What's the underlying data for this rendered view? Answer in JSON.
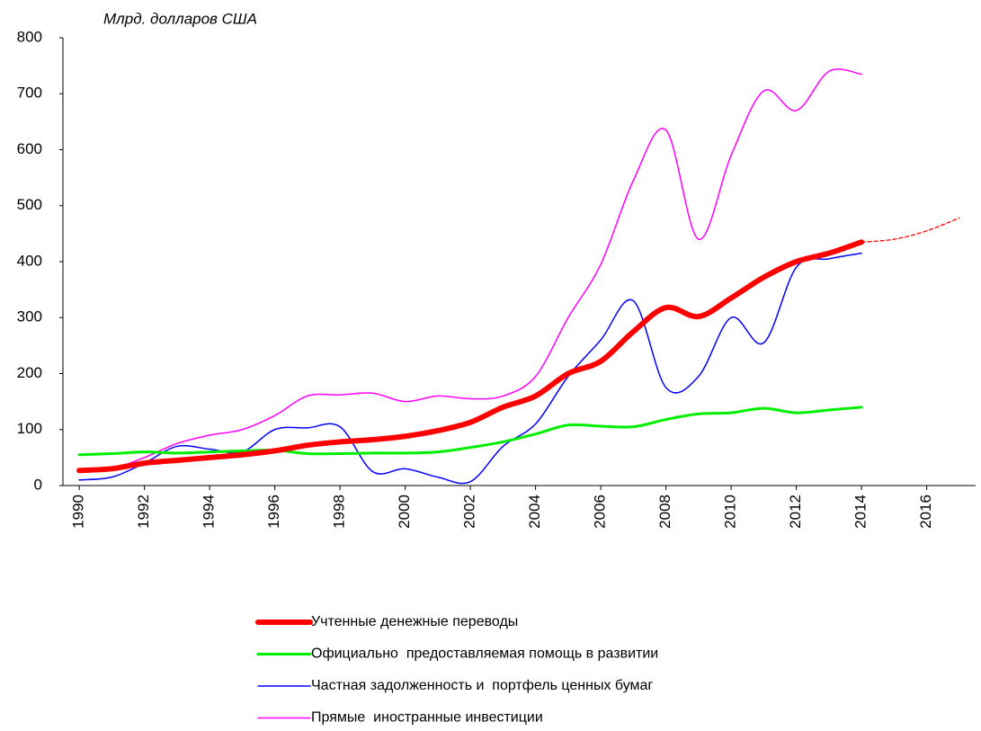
{
  "chart_data": {
    "type": "line",
    "ylabel": "Млрд. долларов США",
    "x": [
      1990,
      1991,
      1992,
      1993,
      1994,
      1995,
      1996,
      1997,
      1998,
      1999,
      2000,
      2001,
      2002,
      2003,
      2004,
      2005,
      2006,
      2007,
      2008,
      2009,
      2010,
      2011,
      2012,
      2013,
      2014
    ],
    "series": [
      {
        "name": "Учтенные денежные переводы",
        "color": "#ff0000",
        "width": 6,
        "values": [
          27,
          30,
          40,
          45,
          50,
          55,
          62,
          72,
          78,
          82,
          88,
          98,
          113,
          140,
          160,
          200,
          222,
          275,
          318,
          302,
          335,
          372,
          400,
          415,
          435
        ]
      },
      {
        "name": "Официально  предоставляемая помощь в развитии",
        "color": "#00ee00",
        "width": 3,
        "values": [
          55,
          57,
          60,
          58,
          60,
          62,
          63,
          57,
          57,
          58,
          58,
          60,
          68,
          78,
          92,
          108,
          106,
          105,
          118,
          128,
          130,
          138,
          130,
          135,
          140
        ]
      },
      {
        "name": "Частная задолженность и  портфель ценных бумаг",
        "color": "#0000ff",
        "width": 1.5,
        "values": [
          10,
          15,
          40,
          70,
          65,
          60,
          100,
          103,
          105,
          25,
          30,
          15,
          7,
          70,
          110,
          195,
          260,
          330,
          175,
          195,
          300,
          255,
          390,
          405,
          415
        ]
      },
      {
        "name": "Прямые  иностранные инвестиции",
        "color": "#ff00ff",
        "width": 1.5,
        "values": [
          25,
          30,
          50,
          75,
          90,
          100,
          125,
          160,
          162,
          165,
          150,
          160,
          155,
          160,
          195,
          300,
          395,
          545,
          635,
          440,
          590,
          705,
          670,
          740,
          735
        ]
      }
    ],
    "forecast": {
      "color": "#ff0000",
      "x": [
        2014,
        2015,
        2016,
        2017
      ],
      "values": [
        435,
        440,
        455,
        478
      ],
      "dashed": true
    },
    "xlim": [
      1989.5,
      2017.5
    ],
    "xticks": [
      1990,
      1992,
      1994,
      1996,
      1998,
      2000,
      2002,
      2004,
      2006,
      2008,
      2010,
      2012,
      2014,
      2016
    ],
    "ylim": [
      0,
      800
    ],
    "yticks": [
      0,
      100,
      200,
      300,
      400,
      500,
      600,
      700,
      800
    ],
    "grid": false,
    "legend": "bottom"
  }
}
